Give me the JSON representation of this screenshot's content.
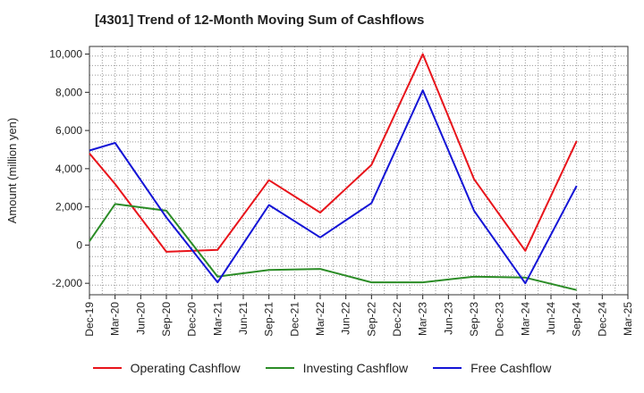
{
  "title": "[4301]  Trend of 12-Month Moving Sum of Cashflows",
  "chart_data": {
    "type": "line",
    "title": "[4301]  Trend of 12-Month Moving Sum of Cashflows",
    "xlabel": "",
    "ylabel": "Amount (million yen)",
    "x": [
      "Dec-19",
      "Mar-20",
      "Jun-20",
      "Sep-20",
      "Dec-20",
      "Mar-21",
      "Jun-21",
      "Sep-21",
      "Dec-21",
      "Mar-22",
      "Jun-22",
      "Sep-22",
      "Dec-22",
      "Mar-23",
      "Jun-23",
      "Sep-23",
      "Dec-23",
      "Mar-24",
      "Jun-24",
      "Sep-24",
      "Dec-24",
      "Mar-25"
    ],
    "ylim": [
      -2600,
      10400
    ],
    "yticks": [
      -2000,
      0,
      2000,
      4000,
      6000,
      8000,
      10000
    ],
    "ytick_labels": [
      "-2,000",
      "0",
      "2,000",
      "4,000",
      "6,000",
      "8,000",
      "10,000"
    ],
    "grid": true,
    "legend_position": "bottom",
    "series": [
      {
        "name": "Operating Cashflow",
        "color": "#e8141b",
        "values": [
          4800,
          3200,
          null,
          -350,
          null,
          -250,
          null,
          3400,
          null,
          1700,
          null,
          4200,
          null,
          10000,
          null,
          3450,
          null,
          -300,
          null,
          5450,
          null,
          null
        ]
      },
      {
        "name": "Investing Cashflow",
        "color": "#2b8c26",
        "values": [
          200,
          2150,
          null,
          1800,
          null,
          -1650,
          null,
          -1300,
          null,
          -1250,
          null,
          -1950,
          null,
          -1950,
          null,
          -1650,
          null,
          -1700,
          null,
          -2350,
          null,
          null
        ]
      },
      {
        "name": "Free Cashflow",
        "color": "#1414d6",
        "values": [
          4950,
          5350,
          null,
          1450,
          null,
          -1950,
          null,
          2100,
          null,
          400,
          null,
          2200,
          null,
          8100,
          null,
          1800,
          null,
          -2000,
          null,
          3100,
          null,
          null
        ]
      }
    ]
  }
}
